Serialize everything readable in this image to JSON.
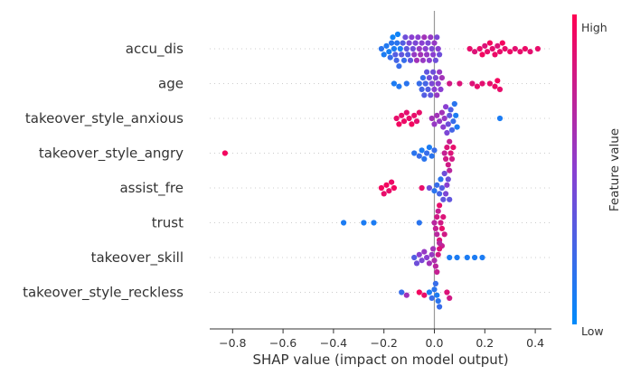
{
  "chart_data": {
    "type": "scatter",
    "subtype": "beeswarm",
    "title": "",
    "xlabel": "SHAP value (impact on model output)",
    "ylabel": "",
    "xlim": [
      -0.9,
      0.47
    ],
    "xticks": [
      -0.8,
      -0.6,
      -0.4,
      -0.2,
      0.0,
      0.2,
      0.4
    ],
    "xtick_labels": [
      "−0.8",
      "−0.6",
      "−0.4",
      "−0.2",
      "0.0",
      "0.2",
      "0.4"
    ],
    "zero_line": 0.0,
    "colorbar": {
      "title": "Feature value",
      "high_label": "High",
      "low_label": "Low",
      "low_color": "#008bfb",
      "high_color": "#ff0052"
    },
    "series": [
      {
        "name": "accu_dis",
        "points": [
          [
            -0.21,
            0.15
          ],
          [
            -0.2,
            0.1
          ],
          [
            -0.19,
            0.12
          ],
          [
            -0.18,
            0.08
          ],
          [
            -0.175,
            0.2
          ],
          [
            -0.17,
            0.15
          ],
          [
            -0.165,
            0.05
          ],
          [
            -0.16,
            0.1
          ],
          [
            -0.155,
            0.3
          ],
          [
            -0.15,
            0.25
          ],
          [
            -0.148,
            0.15
          ],
          [
            -0.145,
            0.05
          ],
          [
            -0.14,
            0.2
          ],
          [
            -0.135,
            0.1
          ],
          [
            -0.13,
            0.35
          ],
          [
            -0.125,
            0.3
          ],
          [
            -0.12,
            0.2
          ],
          [
            -0.115,
            0.4
          ],
          [
            -0.11,
            0.35
          ],
          [
            -0.105,
            0.3
          ],
          [
            -0.1,
            0.45
          ],
          [
            -0.095,
            0.35
          ],
          [
            -0.09,
            0.5
          ],
          [
            -0.085,
            0.4
          ],
          [
            -0.08,
            0.55
          ],
          [
            -0.075,
            0.45
          ],
          [
            -0.07,
            0.6
          ],
          [
            -0.065,
            0.5
          ],
          [
            -0.06,
            0.55
          ],
          [
            -0.055,
            0.6
          ],
          [
            -0.05,
            0.5
          ],
          [
            -0.045,
            0.55
          ],
          [
            -0.04,
            0.6
          ],
          [
            -0.035,
            0.5
          ],
          [
            -0.03,
            0.55
          ],
          [
            -0.025,
            0.45
          ],
          [
            -0.02,
            0.5
          ],
          [
            -0.015,
            0.55
          ],
          [
            -0.01,
            0.45
          ],
          [
            -0.005,
            0.5
          ],
          [
            0.0,
            0.55
          ],
          [
            0.005,
            0.4
          ],
          [
            0.01,
            0.45
          ],
          [
            0.015,
            0.5
          ],
          [
            0.02,
            0.4
          ],
          [
            0.14,
            0.9
          ],
          [
            0.16,
            0.85
          ],
          [
            0.18,
            0.9
          ],
          [
            0.19,
            0.95
          ],
          [
            0.2,
            0.85
          ],
          [
            0.21,
            0.9
          ],
          [
            0.22,
            0.95
          ],
          [
            0.23,
            0.88
          ],
          [
            0.24,
            0.92
          ],
          [
            0.25,
            0.85
          ],
          [
            0.26,
            0.9
          ],
          [
            0.27,
            0.95
          ],
          [
            0.28,
            0.9
          ],
          [
            0.3,
            0.92
          ],
          [
            0.32,
            0.88
          ],
          [
            0.34,
            0.9
          ],
          [
            0.36,
            0.92
          ],
          [
            0.38,
            0.88
          ],
          [
            0.41,
            0.9
          ]
        ]
      },
      {
        "name": "age",
        "points": [
          [
            -0.16,
            0.1
          ],
          [
            -0.14,
            0.12
          ],
          [
            -0.11,
            0.15
          ],
          [
            -0.06,
            0.2
          ],
          [
            -0.05,
            0.25
          ],
          [
            -0.045,
            0.2
          ],
          [
            -0.04,
            0.3
          ],
          [
            -0.035,
            0.25
          ],
          [
            -0.03,
            0.35
          ],
          [
            -0.025,
            0.3
          ],
          [
            -0.02,
            0.4
          ],
          [
            -0.015,
            0.35
          ],
          [
            -0.01,
            0.45
          ],
          [
            -0.005,
            0.4
          ],
          [
            0.0,
            0.5
          ],
          [
            0.005,
            0.45
          ],
          [
            0.01,
            0.55
          ],
          [
            0.015,
            0.5
          ],
          [
            0.02,
            0.55
          ],
          [
            0.025,
            0.5
          ],
          [
            0.03,
            0.6
          ],
          [
            0.06,
            0.8
          ],
          [
            0.1,
            0.85
          ],
          [
            0.15,
            0.85
          ],
          [
            0.17,
            0.9
          ],
          [
            0.19,
            0.88
          ],
          [
            0.22,
            0.9
          ],
          [
            0.24,
            0.92
          ],
          [
            0.25,
            0.95
          ],
          [
            0.26,
            0.9
          ]
        ]
      },
      {
        "name": "takeover_style_anxious",
        "points": [
          [
            -0.15,
            0.9
          ],
          [
            -0.14,
            0.95
          ],
          [
            -0.13,
            0.9
          ],
          [
            -0.12,
            0.92
          ],
          [
            -0.11,
            0.88
          ],
          [
            -0.1,
            0.9
          ],
          [
            -0.09,
            0.95
          ],
          [
            -0.08,
            0.9
          ],
          [
            -0.07,
            0.88
          ],
          [
            -0.06,
            0.9
          ],
          [
            -0.01,
            0.6
          ],
          [
            0.0,
            0.55
          ],
          [
            0.01,
            0.6
          ],
          [
            0.02,
            0.55
          ],
          [
            0.03,
            0.6
          ],
          [
            0.035,
            0.5
          ],
          [
            0.04,
            0.55
          ],
          [
            0.045,
            0.5
          ],
          [
            0.05,
            0.45
          ],
          [
            0.055,
            0.4
          ],
          [
            0.06,
            0.35
          ],
          [
            0.065,
            0.3
          ],
          [
            0.07,
            0.25
          ],
          [
            0.075,
            0.2
          ],
          [
            0.08,
            0.15
          ],
          [
            0.085,
            0.1
          ],
          [
            0.09,
            0.1
          ],
          [
            0.26,
            0.1
          ]
        ]
      },
      {
        "name": "takeover_style_angry",
        "points": [
          [
            -0.83,
            0.95
          ],
          [
            -0.08,
            0.15
          ],
          [
            -0.06,
            0.2
          ],
          [
            -0.05,
            0.1
          ],
          [
            -0.04,
            0.15
          ],
          [
            -0.03,
            0.2
          ],
          [
            -0.02,
            0.1
          ],
          [
            -0.01,
            0.15
          ],
          [
            0.0,
            0.2
          ],
          [
            0.04,
            0.75
          ],
          [
            0.045,
            0.8
          ],
          [
            0.05,
            0.85
          ],
          [
            0.055,
            0.8
          ],
          [
            0.06,
            0.75
          ],
          [
            0.065,
            0.85
          ],
          [
            0.07,
            0.8
          ],
          [
            0.075,
            0.9
          ],
          [
            0.06,
            0.7
          ]
        ]
      },
      {
        "name": "assist_fre",
        "points": [
          [
            -0.21,
            0.95
          ],
          [
            -0.2,
            0.9
          ],
          [
            -0.19,
            0.95
          ],
          [
            -0.18,
            0.9
          ],
          [
            -0.17,
            0.92
          ],
          [
            -0.16,
            0.95
          ],
          [
            -0.05,
            0.9
          ],
          [
            -0.02,
            0.4
          ],
          [
            0.0,
            0.15
          ],
          [
            0.01,
            0.2
          ],
          [
            0.02,
            0.25
          ],
          [
            0.025,
            0.15
          ],
          [
            0.03,
            0.3
          ],
          [
            0.035,
            0.35
          ],
          [
            0.04,
            0.4
          ],
          [
            0.045,
            0.45
          ],
          [
            0.05,
            0.5
          ],
          [
            0.055,
            0.4
          ],
          [
            0.06,
            0.35
          ]
        ]
      },
      {
        "name": "trust",
        "points": [
          [
            -0.36,
            0.1
          ],
          [
            -0.28,
            0.1
          ],
          [
            -0.24,
            0.1
          ],
          [
            -0.06,
            0.15
          ],
          [
            0.0,
            0.7
          ],
          [
            0.005,
            0.75
          ],
          [
            0.01,
            0.8
          ],
          [
            0.015,
            0.75
          ],
          [
            0.02,
            0.85
          ],
          [
            0.025,
            0.8
          ],
          [
            0.03,
            0.9
          ],
          [
            0.035,
            0.85
          ],
          [
            0.04,
            0.8
          ],
          [
            0.01,
            0.7
          ],
          [
            0.02,
            0.9
          ],
          [
            0.03,
            0.75
          ]
        ]
      },
      {
        "name": "takeover_skill",
        "points": [
          [
            -0.08,
            0.3
          ],
          [
            -0.07,
            0.4
          ],
          [
            -0.06,
            0.5
          ],
          [
            -0.05,
            0.45
          ],
          [
            -0.04,
            0.55
          ],
          [
            -0.03,
            0.5
          ],
          [
            -0.02,
            0.6
          ],
          [
            -0.01,
            0.55
          ],
          [
            0.0,
            0.65
          ],
          [
            0.005,
            0.7
          ],
          [
            0.01,
            0.75
          ],
          [
            0.015,
            0.8
          ],
          [
            0.02,
            0.85
          ],
          [
            -0.005,
            0.6
          ],
          [
            0.02,
            0.7
          ],
          [
            0.06,
            0.1
          ],
          [
            0.09,
            0.1
          ],
          [
            0.13,
            0.1
          ],
          [
            0.16,
            0.1
          ],
          [
            0.19,
            0.1
          ]
        ]
      },
      {
        "name": "takeover_style_reckless",
        "points": [
          [
            -0.13,
            0.2
          ],
          [
            -0.11,
            0.6
          ],
          [
            -0.06,
            0.95
          ],
          [
            -0.04,
            0.9
          ],
          [
            -0.02,
            0.1
          ],
          [
            -0.01,
            0.2
          ],
          [
            0.0,
            0.15
          ],
          [
            0.005,
            0.2
          ],
          [
            0.01,
            0.1
          ],
          [
            0.015,
            0.15
          ],
          [
            0.02,
            0.2
          ],
          [
            0.06,
            0.8
          ],
          [
            0.05,
            0.85
          ]
        ]
      }
    ]
  }
}
